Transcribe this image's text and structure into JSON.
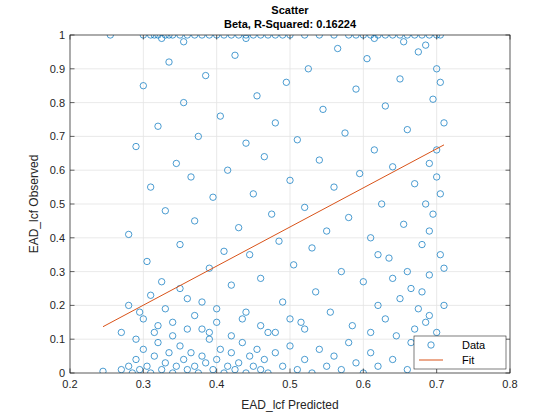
{
  "chart_data": {
    "type": "scatter",
    "title": "Scatter",
    "subtitle": "Beta, R-Squared: 0.16224",
    "x_label": "EAD_lcf Predicted",
    "y_label": "EAD_lcf Observed",
    "xlim": [
      0.2,
      0.8
    ],
    "xticks": [
      0.2,
      0.3,
      0.4,
      0.5,
      0.6,
      0.7,
      0.8
    ],
    "ylim": [
      0,
      1
    ],
    "yticks": [
      0,
      0.1,
      0.2,
      0.3,
      0.4,
      0.5,
      0.6,
      0.7,
      0.8,
      0.9,
      1
    ],
    "grid": true,
    "legend": "southeast",
    "series": [
      {
        "name": "Data",
        "type": "scatter",
        "marker": "circle",
        "color": "#0072bd",
        "x": [
          0.3,
          0.31,
          0.315,
          0.32,
          0.33,
          0.335,
          0.34,
          0.35,
          0.36,
          0.37,
          0.38,
          0.39,
          0.4,
          0.41,
          0.42,
          0.43,
          0.44,
          0.45,
          0.46,
          0.47,
          0.48,
          0.49,
          0.5,
          0.52,
          0.54,
          0.56,
          0.58,
          0.59,
          0.6,
          0.61,
          0.62,
          0.63,
          0.64,
          0.65,
          0.66,
          0.67,
          0.68,
          0.69,
          0.7,
          0.705,
          0.325,
          0.355,
          0.44,
          0.615,
          0.655,
          0.255,
          0.245,
          0.27,
          0.28,
          0.285,
          0.29,
          0.295,
          0.3,
          0.305,
          0.31,
          0.315,
          0.32,
          0.325,
          0.33,
          0.335,
          0.34,
          0.345,
          0.35,
          0.355,
          0.36,
          0.365,
          0.37,
          0.375,
          0.38,
          0.385,
          0.39,
          0.395,
          0.4,
          0.405,
          0.41,
          0.415,
          0.42,
          0.425,
          0.43,
          0.435,
          0.44,
          0.445,
          0.45,
          0.455,
          0.46,
          0.465,
          0.47,
          0.48,
          0.49,
          0.5,
          0.51,
          0.52,
          0.53,
          0.54,
          0.55,
          0.56,
          0.57,
          0.58,
          0.59,
          0.6,
          0.61,
          0.62,
          0.64,
          0.66,
          0.68,
          0.7,
          0.28,
          0.29,
          0.295,
          0.3,
          0.305,
          0.31,
          0.315,
          0.32,
          0.325,
          0.33,
          0.335,
          0.34,
          0.345,
          0.35,
          0.355,
          0.36,
          0.365,
          0.37,
          0.375,
          0.38,
          0.385,
          0.39,
          0.395,
          0.4,
          0.405,
          0.41,
          0.415,
          0.42,
          0.425,
          0.43,
          0.435,
          0.44,
          0.445,
          0.45,
          0.455,
          0.46,
          0.465,
          0.47,
          0.475,
          0.48,
          0.485,
          0.49,
          0.495,
          0.5,
          0.505,
          0.51,
          0.515,
          0.52,
          0.525,
          0.53,
          0.535,
          0.54,
          0.545,
          0.55,
          0.555,
          0.56,
          0.565,
          0.57,
          0.575,
          0.58,
          0.585,
          0.59,
          0.595,
          0.6,
          0.605,
          0.61,
          0.615,
          0.62,
          0.625,
          0.63,
          0.635,
          0.64,
          0.645,
          0.65,
          0.655,
          0.66,
          0.665,
          0.67,
          0.675,
          0.68,
          0.685,
          0.69,
          0.69,
          0.695,
          0.695,
          0.7,
          0.7,
          0.7,
          0.705,
          0.705,
          0.71,
          0.71,
          0.685,
          0.69,
          0.695,
          0.7,
          0.705,
          0.71,
          0.685,
          0.69,
          0.66,
          0.665,
          0.67,
          0.675,
          0.68,
          0.65,
          0.64,
          0.63,
          0.62,
          0.61,
          0.27,
          0.28,
          0.29,
          0.3,
          0.31,
          0.32,
          0.33,
          0.34,
          0.35,
          0.36,
          0.37,
          0.38,
          0.39,
          0.4,
          0.42,
          0.44,
          0.46,
          0.48,
          0.5,
          0.52
        ],
        "values": [
          1,
          1,
          1,
          1,
          1,
          1,
          1,
          1,
          1,
          1,
          1,
          1,
          1,
          1,
          1,
          1,
          1,
          1,
          1,
          1,
          1,
          1,
          1,
          1,
          1,
          1,
          1,
          1,
          1,
          1,
          1,
          1,
          1,
          1,
          1,
          1,
          1,
          1,
          1,
          1,
          0.99,
          0.98,
          0.99,
          0.99,
          0.98,
          1,
          0.005,
          0.01,
          0.02,
          0,
          0.04,
          0.01,
          0.07,
          0.02,
          0,
          0.05,
          0.09,
          0.01,
          0.03,
          0.06,
          0,
          0.02,
          0.08,
          0.04,
          0.01,
          0.06,
          0.02,
          0,
          0.05,
          0.03,
          0.1,
          0.01,
          0.04,
          0.07,
          0,
          0.02,
          0.06,
          0.01,
          0.03,
          0.09,
          0,
          0.05,
          0.02,
          0.07,
          0.01,
          0.04,
          0,
          0.06,
          0.02,
          0.08,
          0.01,
          0.04,
          0,
          0.07,
          0.02,
          0.05,
          0.01,
          0.09,
          0.03,
          0,
          0.06,
          0.02,
          0.04,
          0.01,
          0.07,
          0.03,
          0.41,
          0.67,
          0.18,
          0.85,
          0.33,
          0.55,
          0.12,
          0.73,
          0.27,
          0.48,
          0.92,
          0.15,
          0.62,
          0.38,
          0.8,
          0.22,
          0.58,
          0.45,
          0.7,
          0.13,
          0.88,
          0.31,
          0.52,
          0.19,
          0.76,
          0.36,
          0.6,
          0.26,
          0.94,
          0.43,
          0.16,
          0.68,
          0.35,
          0.53,
          0.82,
          0.28,
          0.64,
          0.12,
          0.47,
          0.74,
          0.39,
          0.21,
          0.86,
          0.57,
          0.32,
          0.69,
          0.15,
          0.49,
          0.9,
          0.37,
          0.24,
          0.63,
          0.78,
          0.42,
          0.18,
          0.55,
          0.96,
          0.3,
          0.71,
          0.46,
          0.14,
          0.84,
          0.59,
          0.27,
          0.93,
          0.4,
          0.66,
          0.2,
          0.5,
          0.79,
          0.34,
          0.61,
          0.11,
          0.87,
          0.44,
          0.72,
          0.25,
          0.56,
          0.95,
          0.38,
          0.15,
          0.62,
          0.29,
          0.81,
          0.47,
          0.12,
          0.66,
          0.9,
          0.35,
          0.53,
          0.2,
          0.74,
          0.97,
          0.42,
          0.08,
          0.58,
          0.86,
          0.31,
          0.5,
          0.17,
          0.3,
          0.09,
          0.13,
          0.19,
          0.24,
          0.22,
          0.28,
          0.16,
          0.35,
          0.12,
          0.12,
          0.2,
          0.1,
          0.16,
          0.23,
          0.14,
          0.19,
          0.11,
          0.25,
          0.13,
          0.17,
          0.21,
          0.12,
          0.15,
          0.11,
          0.18,
          0.14,
          0.12,
          0.16,
          0.13
        ]
      },
      {
        "name": "Fit",
        "type": "line",
        "line_style": "solid",
        "color": "#d95319",
        "x": [
          0.245,
          0.71
        ],
        "values": [
          0.137,
          0.675
        ]
      }
    ]
  }
}
